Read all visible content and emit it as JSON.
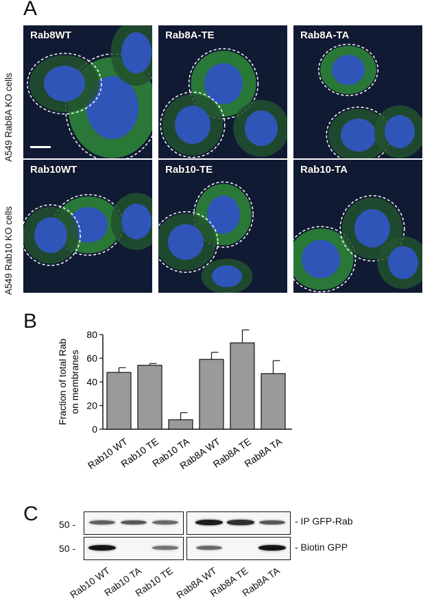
{
  "panels": {
    "a": "A",
    "b": "B",
    "c": "C"
  },
  "row_labels": {
    "top": "A549 Rab8A KO cells",
    "bottom": "A549 Rab10 KO cells"
  },
  "micrographs": [
    {
      "label": "Rab8WT"
    },
    {
      "label": "Rab8A-TE"
    },
    {
      "label": "Rab8A-TA"
    },
    {
      "label": "Rab10WT"
    },
    {
      "label": "Rab10-TE"
    },
    {
      "label": "Rab10-TA"
    }
  ],
  "chart_data": {
    "type": "bar",
    "categories": [
      "Rab10 WT",
      "Rab10 TE",
      "Rab10 TA",
      "Rab8A WT",
      "Rab8A TE",
      "Rab8A TA"
    ],
    "values": [
      48,
      54,
      8,
      59,
      73,
      47
    ],
    "errors": [
      4,
      1.5,
      6,
      6,
      11,
      11
    ],
    "ylabel_line1": "Fraction of total Rab",
    "ylabel_line2": "on membranes",
    "ylim": [
      0,
      80
    ],
    "yticks": [
      "0",
      "20",
      "40",
      "60",
      "80"
    ],
    "bar_color": "#9a9a9a"
  },
  "blot": {
    "mw_top": "50 -",
    "mw_bottom": "50 -",
    "label_top": "- IP GFP-Rab",
    "label_bottom": "- Biotin GPP",
    "lanes": [
      "Rab10 WT",
      "Rab10 TA",
      "Rab10 TE",
      "Rab8A WT",
      "Rab8A TE",
      "Rab8A TA"
    ],
    "ip_intensity": [
      0.55,
      0.6,
      0.5,
      0.9,
      0.8,
      0.6
    ],
    "biotin_intensity": [
      0.95,
      0.0,
      0.45,
      0.5,
      0.0,
      0.95
    ]
  }
}
